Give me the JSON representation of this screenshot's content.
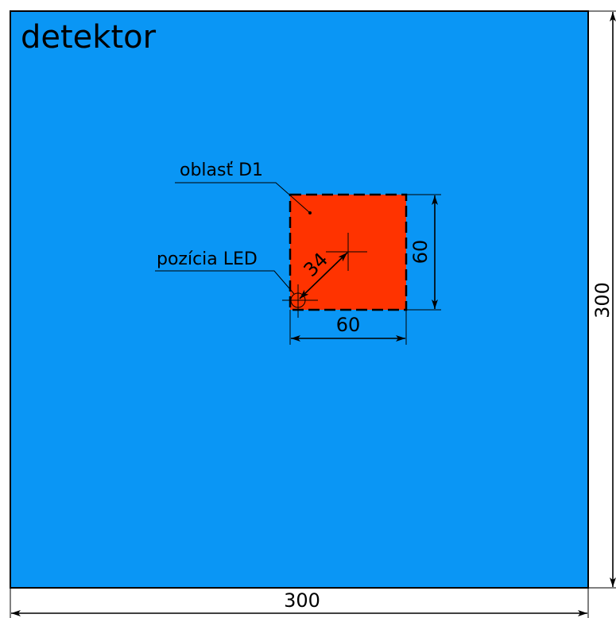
{
  "title": "detektor",
  "regions": [
    {
      "label": "oblasť D1"
    }
  ],
  "markers": [
    {
      "label": "pozícia LED"
    }
  ],
  "dimensions": [
    {
      "label": "300"
    },
    {
      "label": "300"
    },
    {
      "label": "60"
    },
    {
      "label": "60"
    },
    {
      "label": "34"
    }
  ]
}
